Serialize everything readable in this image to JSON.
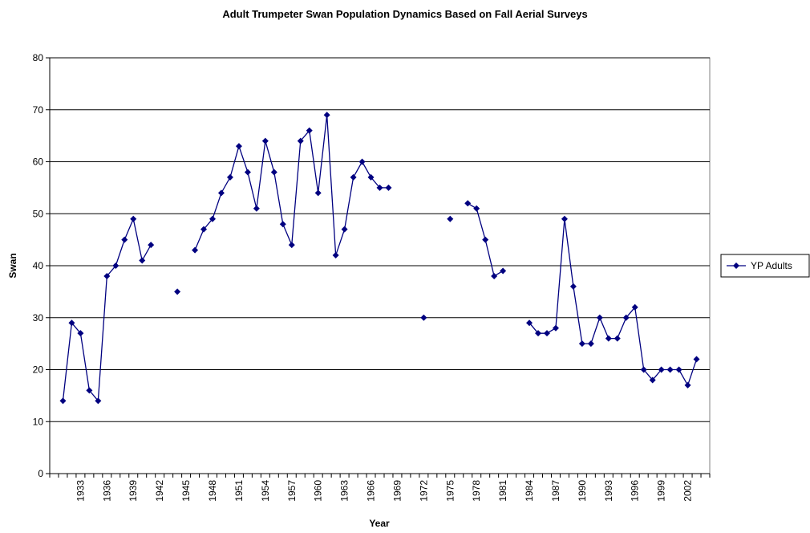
{
  "chart_data": {
    "type": "line",
    "title": "Adult Trumpeter Swan Population Dynamics   Based on Fall Aerial Surveys",
    "x_label": "Year",
    "y_label": "Swan",
    "categories": [
      null,
      null,
      null,
      "1933",
      null,
      null,
      "1936",
      null,
      null,
      "1939",
      null,
      null,
      "1942",
      null,
      null,
      "1945",
      null,
      null,
      "1948",
      null,
      null,
      "1951",
      null,
      null,
      "1954",
      null,
      null,
      "1957",
      null,
      null,
      "1960",
      null,
      null,
      "1963",
      null,
      null,
      "1966",
      null,
      null,
      "1969",
      null,
      null,
      "1972",
      null,
      null,
      "1975",
      null,
      null,
      "1978",
      null,
      null,
      "1981",
      null,
      null,
      "1984",
      null,
      null,
      "1987",
      null,
      null,
      "1990",
      null,
      null,
      "1993",
      null,
      null,
      "1996",
      null,
      null,
      "1999",
      null,
      null,
      "2002",
      null,
      null
    ],
    "series": [
      {
        "name": "YP Adults",
        "color": "#000080",
        "values": [
          null,
          14,
          29,
          27,
          16,
          14,
          38,
          40,
          45,
          49,
          41,
          44,
          null,
          null,
          35,
          null,
          43,
          47,
          49,
          54,
          57,
          63,
          58,
          51,
          64,
          58,
          48,
          44,
          64,
          66,
          54,
          69,
          42,
          47,
          57,
          60,
          57,
          55,
          55,
          null,
          null,
          null,
          30,
          null,
          null,
          49,
          null,
          52,
          51,
          45,
          38,
          39,
          null,
          null,
          29,
          27,
          27,
          28,
          49,
          36,
          25,
          25,
          30,
          26,
          26,
          30,
          32,
          20,
          18,
          20,
          20,
          20,
          17,
          22,
          null
        ]
      }
    ],
    "ylim": [
      0,
      80
    ],
    "yticks": [
      0,
      10,
      20,
      30,
      40,
      50,
      60,
      70,
      80
    ],
    "grid": true,
    "legend": "right"
  }
}
